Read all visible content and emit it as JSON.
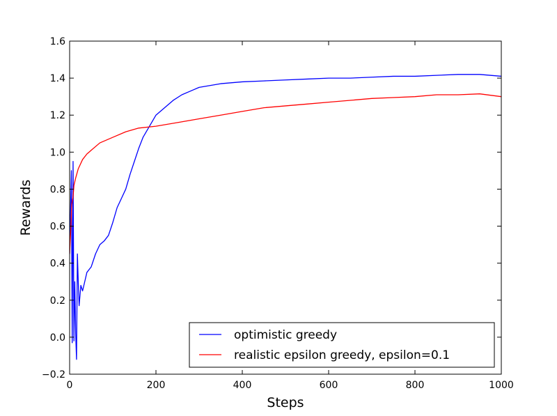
{
  "chart_data": {
    "type": "line",
    "title": "",
    "xlabel": "Steps",
    "ylabel": "Rewards",
    "xlim": [
      0,
      1000
    ],
    "ylim": [
      -0.2,
      1.6
    ],
    "x_ticks": [
      "0",
      "200",
      "400",
      "600",
      "800",
      "1000"
    ],
    "y_ticks": [
      "−0.2",
      "0.0",
      "0.2",
      "0.4",
      "0.6",
      "0.8",
      "1.0",
      "1.2",
      "1.4",
      "1.6"
    ],
    "grid": false,
    "legend": "lower-right",
    "series": [
      {
        "name": "optimistic greedy",
        "color": "#0000ff",
        "points": [
          [
            0,
            0.45
          ],
          [
            4,
            0.9
          ],
          [
            6,
            -0.03
          ],
          [
            8,
            0.95
          ],
          [
            10,
            -0.02
          ],
          [
            12,
            0.3
          ],
          [
            14,
            0.02
          ],
          [
            16,
            -0.12
          ],
          [
            18,
            0.45
          ],
          [
            20,
            0.3
          ],
          [
            22,
            0.17
          ],
          [
            26,
            0.28
          ],
          [
            30,
            0.25
          ],
          [
            35,
            0.3
          ],
          [
            40,
            0.35
          ],
          [
            50,
            0.38
          ],
          [
            60,
            0.45
          ],
          [
            70,
            0.5
          ],
          [
            80,
            0.52
          ],
          [
            90,
            0.55
          ],
          [
            100,
            0.62
          ],
          [
            110,
            0.7
          ],
          [
            120,
            0.75
          ],
          [
            130,
            0.8
          ],
          [
            140,
            0.88
          ],
          [
            150,
            0.95
          ],
          [
            160,
            1.02
          ],
          [
            170,
            1.08
          ],
          [
            180,
            1.12
          ],
          [
            190,
            1.16
          ],
          [
            200,
            1.2
          ],
          [
            220,
            1.24
          ],
          [
            240,
            1.28
          ],
          [
            260,
            1.31
          ],
          [
            280,
            1.33
          ],
          [
            300,
            1.35
          ],
          [
            350,
            1.37
          ],
          [
            400,
            1.38
          ],
          [
            450,
            1.385
          ],
          [
            500,
            1.39
          ],
          [
            550,
            1.395
          ],
          [
            600,
            1.4
          ],
          [
            650,
            1.4
          ],
          [
            700,
            1.405
          ],
          [
            750,
            1.41
          ],
          [
            800,
            1.41
          ],
          [
            850,
            1.415
          ],
          [
            900,
            1.42
          ],
          [
            950,
            1.42
          ],
          [
            1000,
            1.41
          ]
        ]
      },
      {
        "name": "realistic epsilon greedy, epsilon=0.1",
        "color": "#ff0000",
        "points": [
          [
            0,
            0.45
          ],
          [
            3,
            0.6
          ],
          [
            5,
            0.72
          ],
          [
            8,
            0.76
          ],
          [
            10,
            0.82
          ],
          [
            14,
            0.86
          ],
          [
            20,
            0.91
          ],
          [
            30,
            0.96
          ],
          [
            40,
            0.99
          ],
          [
            50,
            1.01
          ],
          [
            70,
            1.05
          ],
          [
            100,
            1.08
          ],
          [
            130,
            1.11
          ],
          [
            160,
            1.13
          ],
          [
            200,
            1.14
          ],
          [
            250,
            1.16
          ],
          [
            300,
            1.18
          ],
          [
            350,
            1.2
          ],
          [
            400,
            1.22
          ],
          [
            450,
            1.24
          ],
          [
            500,
            1.25
          ],
          [
            550,
            1.26
          ],
          [
            600,
            1.27
          ],
          [
            650,
            1.28
          ],
          [
            700,
            1.29
          ],
          [
            750,
            1.295
          ],
          [
            800,
            1.3
          ],
          [
            850,
            1.31
          ],
          [
            900,
            1.31
          ],
          [
            950,
            1.315
          ],
          [
            1000,
            1.3
          ]
        ]
      }
    ]
  }
}
